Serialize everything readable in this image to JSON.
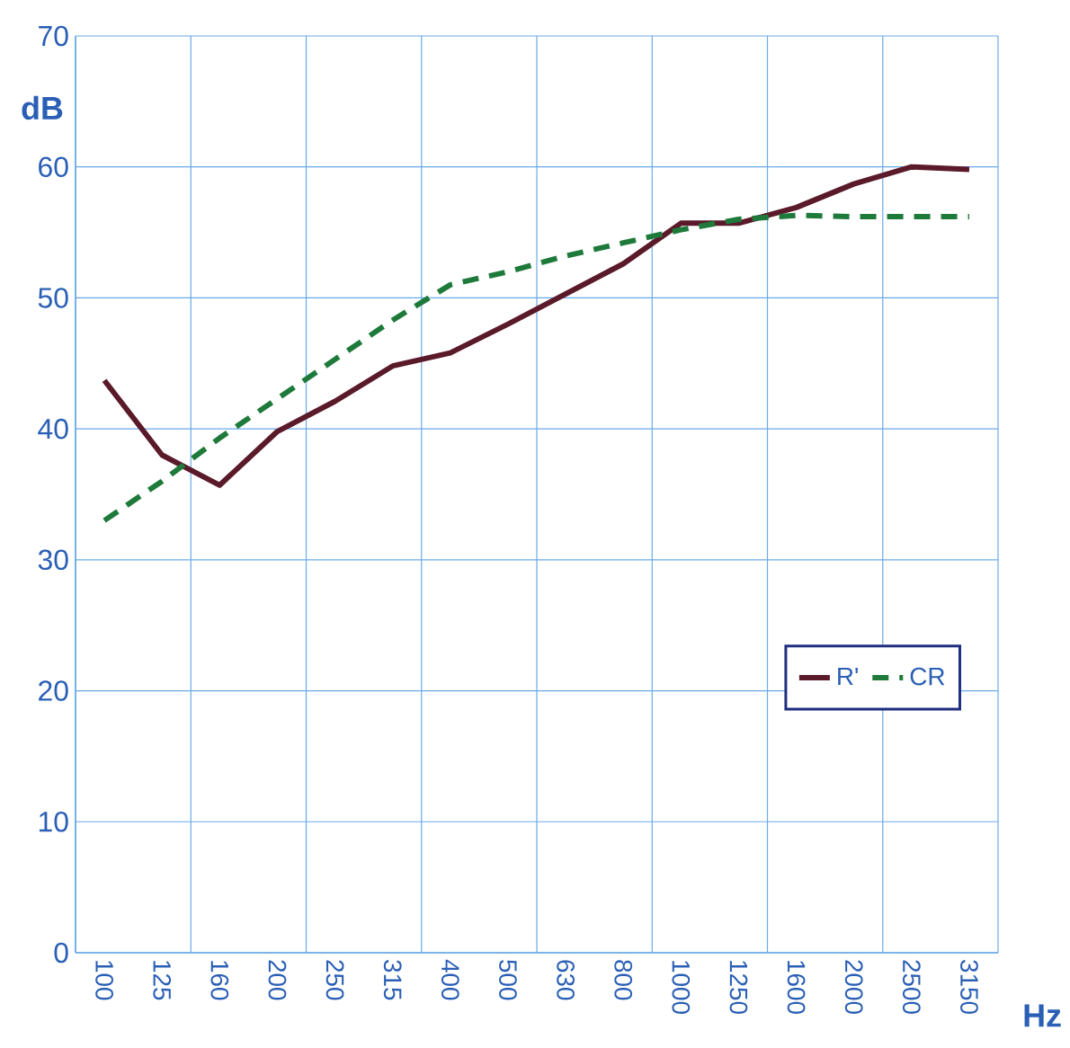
{
  "chart_data": {
    "type": "line",
    "xlabel": "Hz",
    "ylabel": "dB",
    "categories": [
      "100",
      "125",
      "160",
      "200",
      "250",
      "315",
      "400",
      "500",
      "630",
      "800",
      "1000",
      "1250",
      "1600",
      "2000",
      "2500",
      "3150"
    ],
    "series": [
      {
        "name": "R'",
        "color": "#5a1a2a",
        "line_style": "solid",
        "values": [
          43.7,
          38.0,
          35.7,
          39.8,
          42.1,
          44.8,
          45.8,
          48.0,
          50.3,
          52.6,
          55.7,
          55.7,
          56.9,
          58.7,
          60.0,
          59.8
        ]
      },
      {
        "name": "CR",
        "color": "#1e7a3a",
        "line_style": "dashed",
        "values": [
          33.0,
          36.0,
          39.3,
          42.3,
          45.3,
          48.3,
          51.0,
          52.0,
          53.2,
          54.2,
          55.2,
          56.0,
          56.3,
          56.2,
          56.2,
          56.2
        ]
      }
    ],
    "ylim": [
      0,
      70
    ],
    "yticks": [
      0,
      10,
      20,
      30,
      40,
      50,
      60,
      70
    ],
    "grid": true,
    "legend": "right",
    "marker": "none"
  }
}
